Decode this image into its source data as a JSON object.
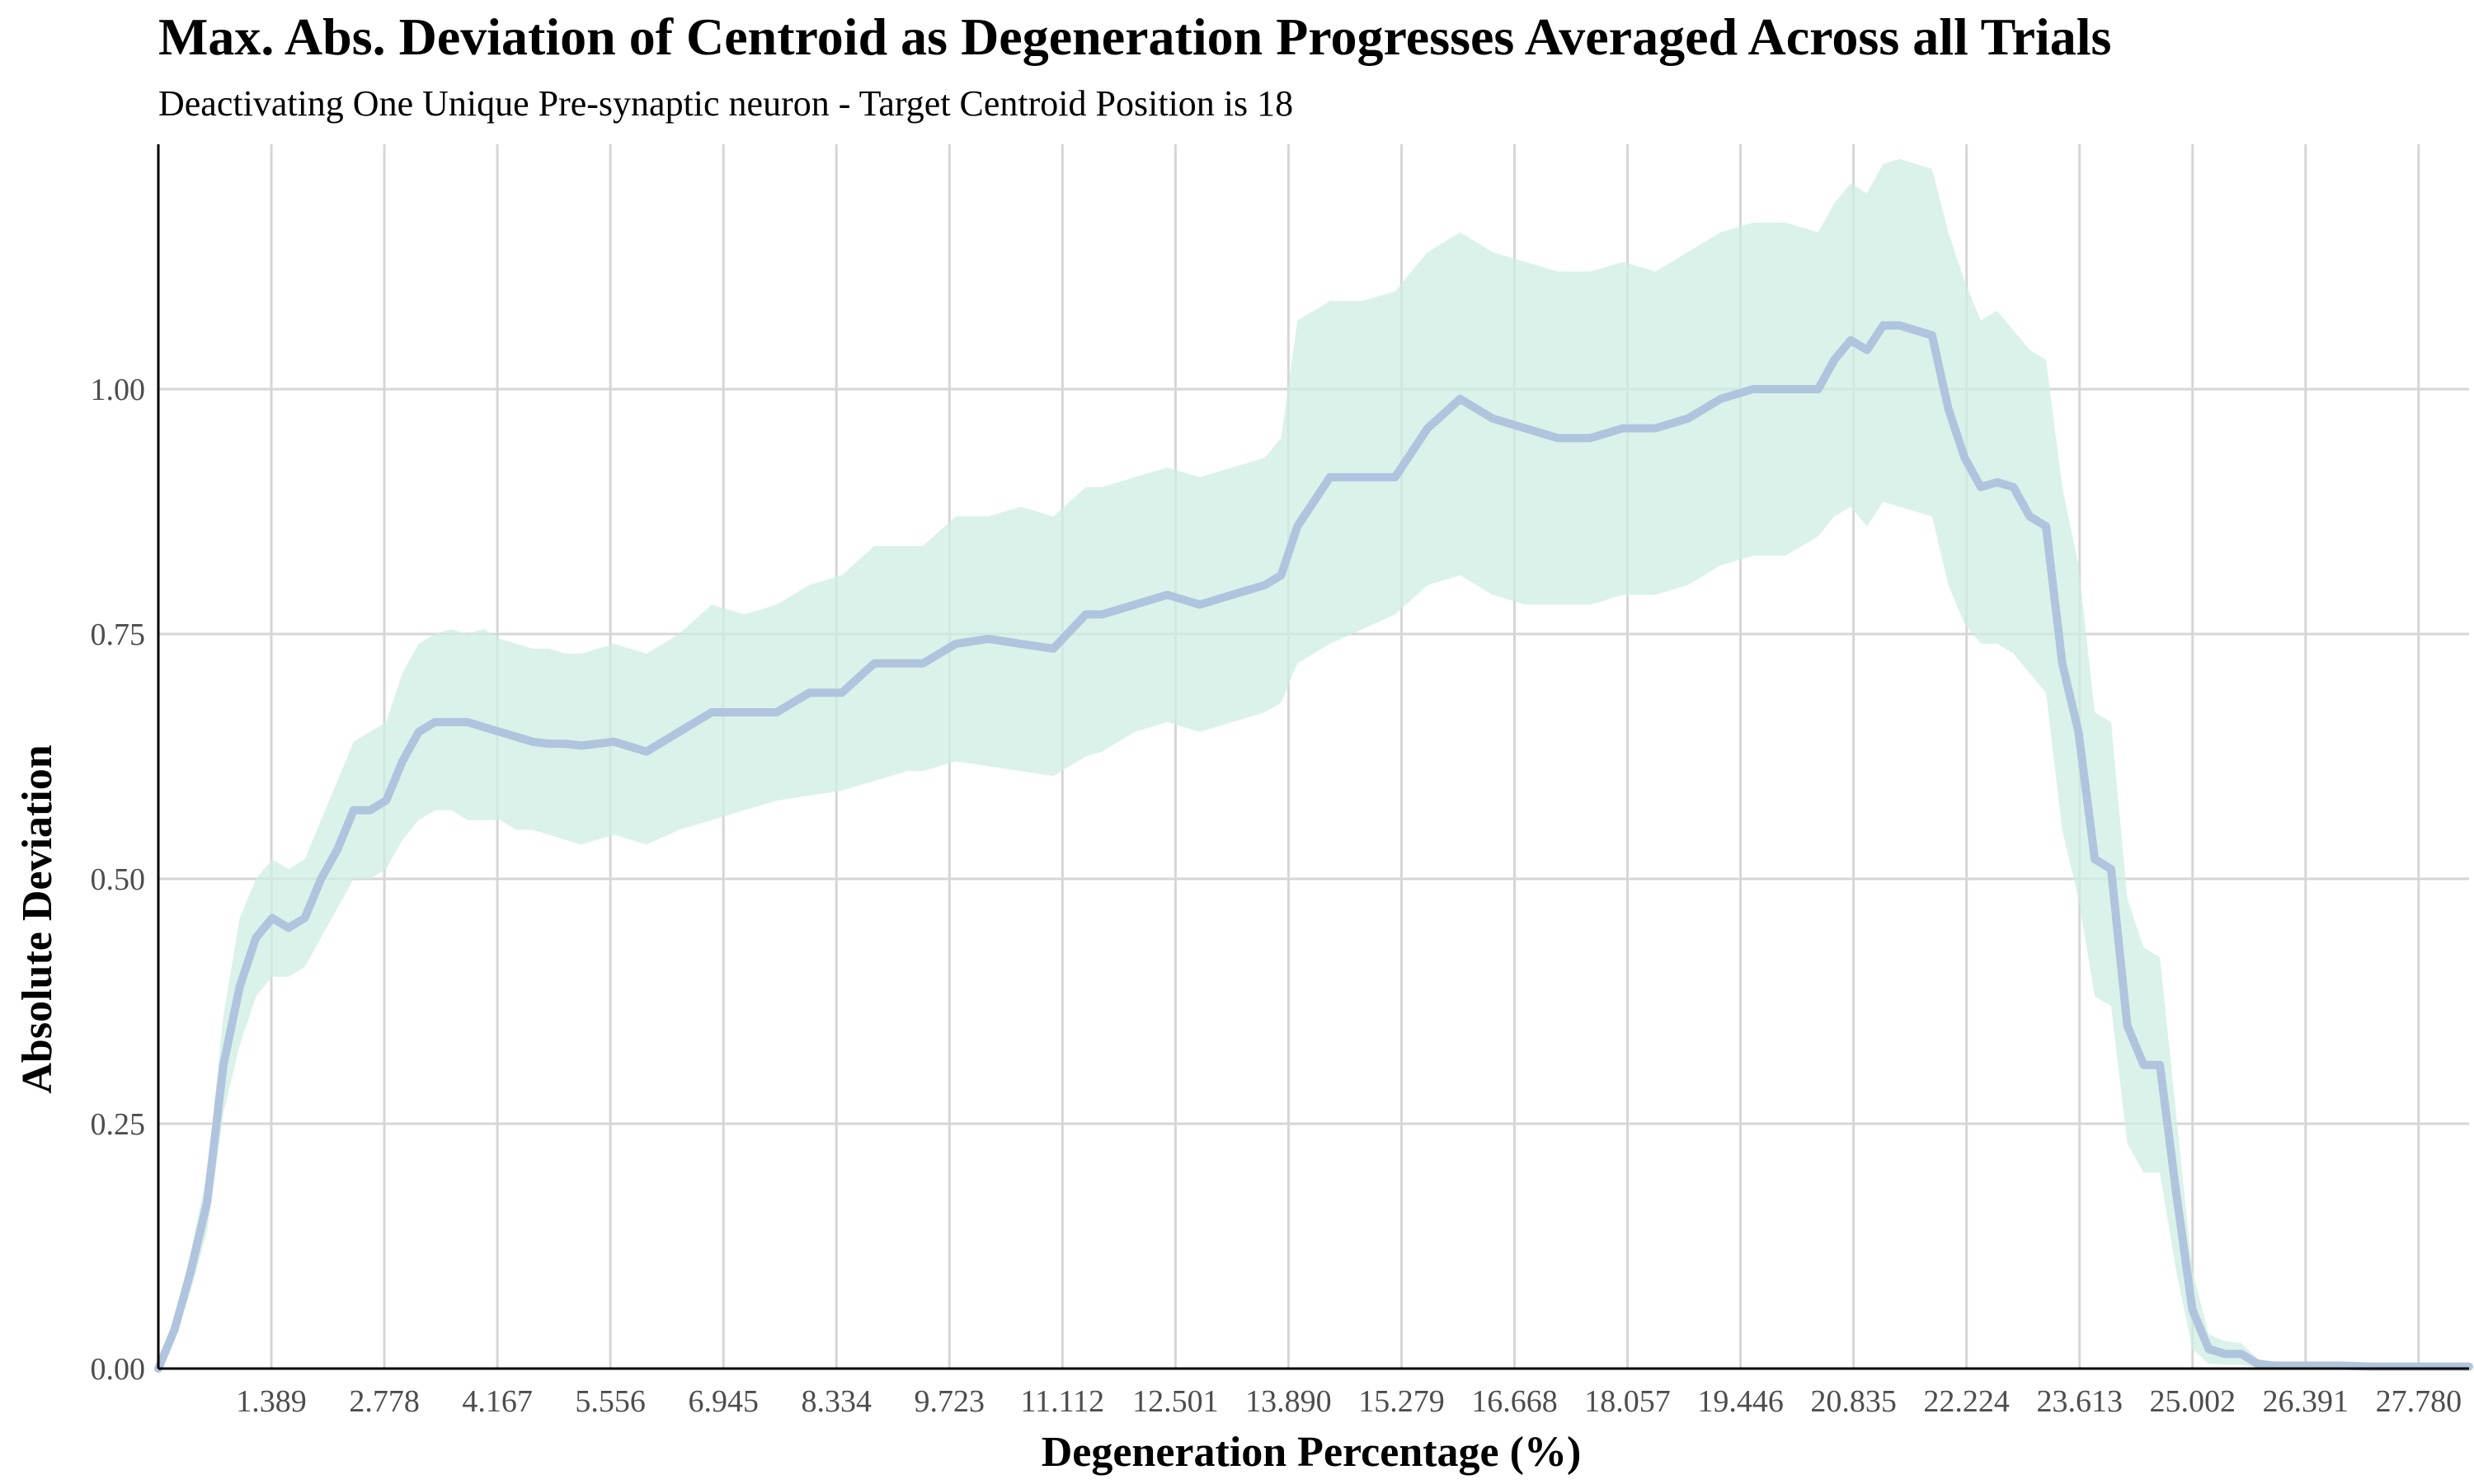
{
  "chart_data": {
    "type": "line",
    "title": "Max. Abs. Deviation of Centroid as Degeneration Progresses Averaged Across all Trials",
    "subtitle": "Deactivating One Unique Pre-synaptic neuron - Target Centroid Position is 18",
    "xlabel": "Degeneration Percentage (%)",
    "ylabel": "Absolute Deviation",
    "xlim": [
      0,
      28.4
    ],
    "ylim": [
      0,
      1.25
    ],
    "x_ticks": [
      1.389,
      2.778,
      4.167,
      5.556,
      6.945,
      8.334,
      9.723,
      11.112,
      12.501,
      13.89,
      15.279,
      16.668,
      18.057,
      19.446,
      20.835,
      22.224,
      23.613,
      25.002,
      26.391,
      27.78
    ],
    "x_tick_labels": [
      "1.389",
      "2.778",
      "4.167",
      "5.556",
      "6.945",
      "8.334",
      "9.723",
      "11.112",
      "12.501",
      "13.890",
      "15.279",
      "16.668",
      "18.057",
      "19.446",
      "20.835",
      "22.224",
      "23.613",
      "25.002",
      "26.391",
      "27.780"
    ],
    "y_ticks": [
      0,
      0.25,
      0.5,
      0.75,
      1.0
    ],
    "y_tick_labels": [
      "0.00",
      "0.25",
      "0.50",
      "0.75",
      "1.00"
    ],
    "grid": true,
    "line_color": "#b0c4de",
    "ribbon_color": "#cdeee3",
    "series": [
      {
        "x": [
          0,
          0.2,
          0.4,
          0.6,
          0.8,
          1.0,
          1.2,
          1.4,
          1.6,
          1.8,
          2.0,
          2.2,
          2.4,
          2.6,
          2.8,
          3.0,
          3.2,
          3.4,
          3.6,
          3.8,
          4.0,
          4.2,
          4.4,
          4.6,
          4.8,
          5.0,
          5.2,
          5.6,
          6.0,
          6.4,
          6.8,
          7.2,
          7.6,
          8.0,
          8.4,
          8.8,
          9.2,
          9.4,
          9.8,
          10.2,
          10.6,
          11.0,
          11.4,
          11.6,
          12.0,
          12.4,
          12.8,
          13.2,
          13.6,
          13.8,
          14.0,
          14.4,
          14.8,
          15.2,
          15.6,
          16.0,
          16.4,
          16.8,
          17.2,
          17.6,
          18.0,
          18.4,
          18.8,
          19.2,
          19.6,
          20.0,
          20.4,
          20.6,
          20.8,
          21.0,
          21.2,
          21.4,
          21.6,
          21.8,
          22.0,
          22.2,
          22.4,
          22.6,
          22.8,
          23.0,
          23.2,
          23.4,
          23.6,
          23.8,
          24.0,
          24.2,
          24.4,
          24.6,
          24.8,
          25.0,
          25.2,
          25.4,
          25.6,
          25.8,
          26.0,
          26.2,
          26.4,
          26.8,
          27.2,
          27.6,
          28.0,
          28.4
        ],
        "y": [
          0.0,
          0.04,
          0.1,
          0.17,
          0.31,
          0.39,
          0.44,
          0.46,
          0.45,
          0.46,
          0.5,
          0.53,
          0.57,
          0.57,
          0.58,
          0.62,
          0.65,
          0.66,
          0.66,
          0.66,
          0.655,
          0.65,
          0.645,
          0.64,
          0.638,
          0.638,
          0.636,
          0.64,
          0.63,
          0.65,
          0.67,
          0.67,
          0.67,
          0.69,
          0.69,
          0.72,
          0.72,
          0.72,
          0.74,
          0.745,
          0.74,
          0.735,
          0.77,
          0.77,
          0.78,
          0.79,
          0.78,
          0.79,
          0.8,
          0.81,
          0.86,
          0.91,
          0.91,
          0.91,
          0.96,
          0.99,
          0.97,
          0.96,
          0.95,
          0.95,
          0.96,
          0.96,
          0.97,
          0.99,
          1.0,
          1.0,
          1.0,
          1.03,
          1.05,
          1.04,
          1.065,
          1.065,
          1.06,
          1.055,
          0.98,
          0.93,
          0.9,
          0.905,
          0.9,
          0.87,
          0.86,
          0.72,
          0.65,
          0.52,
          0.51,
          0.35,
          0.31,
          0.31,
          0.18,
          0.06,
          0.02,
          0.015,
          0.015,
          0.005,
          0.003,
          0.003,
          0.003,
          0.003,
          0.002,
          0.002,
          0.002,
          0.002
        ],
        "lower": [
          0.0,
          0.03,
          0.08,
          0.14,
          0.26,
          0.33,
          0.38,
          0.4,
          0.4,
          0.41,
          0.44,
          0.47,
          0.5,
          0.5,
          0.51,
          0.54,
          0.56,
          0.57,
          0.57,
          0.56,
          0.56,
          0.56,
          0.55,
          0.55,
          0.545,
          0.54,
          0.535,
          0.545,
          0.535,
          0.55,
          0.56,
          0.57,
          0.58,
          0.585,
          0.59,
          0.6,
          0.61,
          0.61,
          0.62,
          0.615,
          0.61,
          0.605,
          0.625,
          0.63,
          0.65,
          0.66,
          0.65,
          0.66,
          0.67,
          0.68,
          0.72,
          0.74,
          0.755,
          0.77,
          0.8,
          0.81,
          0.79,
          0.78,
          0.78,
          0.78,
          0.79,
          0.79,
          0.8,
          0.82,
          0.83,
          0.83,
          0.85,
          0.87,
          0.88,
          0.86,
          0.885,
          0.88,
          0.875,
          0.87,
          0.8,
          0.76,
          0.74,
          0.74,
          0.73,
          0.71,
          0.69,
          0.55,
          0.48,
          0.38,
          0.37,
          0.23,
          0.2,
          0.2,
          0.1,
          0.02,
          0.005,
          0.004,
          0.004,
          0.001,
          0.0,
          0.0,
          0.0,
          0.0,
          0.0,
          0.0,
          0.0,
          0.0
        ],
        "upper": [
          0.0,
          0.05,
          0.12,
          0.2,
          0.36,
          0.46,
          0.5,
          0.52,
          0.51,
          0.52,
          0.56,
          0.6,
          0.64,
          0.65,
          0.66,
          0.71,
          0.74,
          0.75,
          0.755,
          0.75,
          0.755,
          0.745,
          0.74,
          0.735,
          0.735,
          0.73,
          0.73,
          0.74,
          0.73,
          0.75,
          0.78,
          0.77,
          0.78,
          0.8,
          0.81,
          0.84,
          0.84,
          0.84,
          0.87,
          0.87,
          0.88,
          0.87,
          0.9,
          0.9,
          0.91,
          0.92,
          0.91,
          0.92,
          0.93,
          0.95,
          1.07,
          1.09,
          1.09,
          1.1,
          1.14,
          1.16,
          1.14,
          1.13,
          1.12,
          1.12,
          1.13,
          1.12,
          1.14,
          1.16,
          1.17,
          1.17,
          1.16,
          1.19,
          1.21,
          1.2,
          1.23,
          1.235,
          1.23,
          1.225,
          1.16,
          1.11,
          1.07,
          1.08,
          1.06,
          1.04,
          1.03,
          0.9,
          0.82,
          0.67,
          0.66,
          0.48,
          0.43,
          0.42,
          0.26,
          0.1,
          0.035,
          0.028,
          0.026,
          0.01,
          0.006,
          0.006,
          0.006,
          0.005,
          0.004,
          0.004,
          0.003,
          0.003
        ]
      }
    ]
  }
}
